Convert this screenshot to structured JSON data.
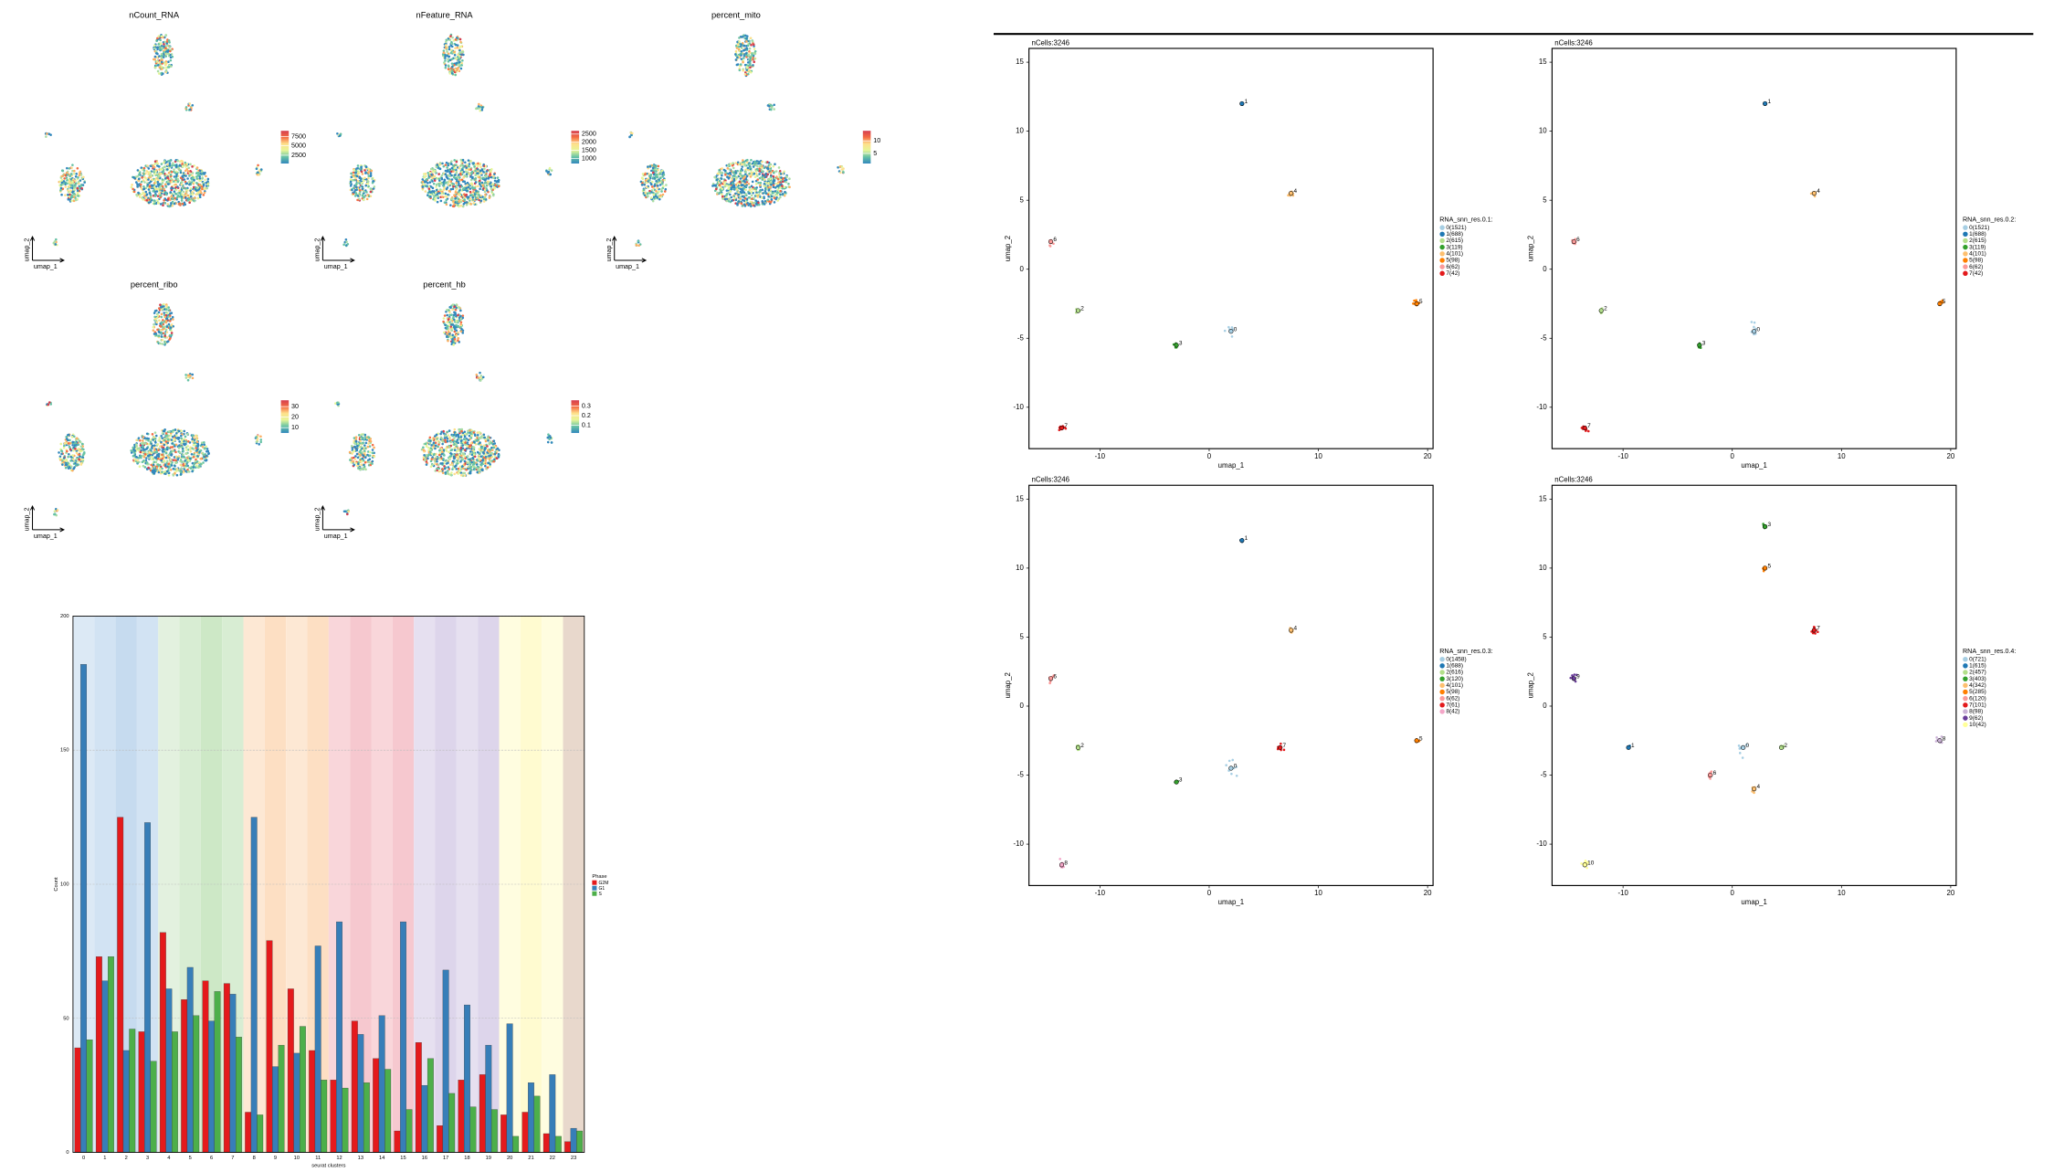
{
  "chart_data": [
    {
      "type": "feature",
      "title": "nCount_RNA",
      "xlabel": "umap_1",
      "ylabel": "umap_2",
      "colorbar_lim": [
        300,
        9000
      ],
      "colorbar_ticks": [
        7500,
        5000,
        2500
      ]
    },
    {
      "type": "feature",
      "title": "nFeature_RNA",
      "xlabel": "umap_1",
      "ylabel": "umap_2",
      "colorbar_lim": [
        700,
        2700
      ],
      "colorbar_ticks": [
        2500,
        2000,
        1500,
        1000
      ]
    },
    {
      "type": "feature",
      "title": "percent_mito",
      "xlabel": "umap_1",
      "ylabel": "umap_2",
      "colorbar_lim": [
        1,
        14
      ],
      "colorbar_ticks": [
        10,
        5
      ]
    },
    {
      "type": "feature",
      "title": "percent_ribo",
      "xlabel": "umap_1",
      "ylabel": "umap_2",
      "colorbar_lim": [
        5,
        36
      ],
      "colorbar_ticks": [
        30,
        20,
        10
      ]
    },
    {
      "type": "feature",
      "title": "percent_hb",
      "xlabel": "umap_1",
      "ylabel": "umap_2",
      "colorbar_lim": [
        0.02,
        0.36
      ],
      "colorbar_ticks": [
        0.3,
        0.2,
        0.1
      ]
    },
    {
      "type": "bar",
      "xlabel": "seurat clusters",
      "ylabel": "Count",
      "legend_title": "Phase",
      "categories": [
        "0",
        "1",
        "2",
        "3",
        "4",
        "5",
        "6",
        "7",
        "8",
        "9",
        "10",
        "11",
        "12",
        "13",
        "14",
        "15",
        "16",
        "17",
        "18",
        "19",
        "20",
        "21",
        "22",
        "23"
      ],
      "ylim": [
        0,
        200
      ],
      "yticks": [
        0,
        50,
        100,
        150,
        200
      ],
      "grid": true,
      "series": [
        {
          "name": "G2M",
          "color": "#E41A1C",
          "values": [
            39,
            73,
            125,
            45,
            82,
            57,
            64,
            63,
            15,
            79,
            61,
            38,
            27,
            49,
            35,
            8,
            41,
            10,
            27,
            29,
            14,
            15,
            7,
            4
          ]
        },
        {
          "name": "G1",
          "color": "#377EB8",
          "values": [
            182,
            64,
            38,
            123,
            61,
            69,
            49,
            59,
            125,
            32,
            37,
            77,
            86,
            44,
            51,
            86,
            25,
            68,
            55,
            40,
            48,
            26,
            29,
            9
          ]
        },
        {
          "name": "S",
          "color": "#4DAF4A",
          "values": [
            42,
            73,
            46,
            34,
            45,
            51,
            60,
            43,
            14,
            40,
            47,
            27,
            24,
            26,
            31,
            16,
            35,
            22,
            17,
            16,
            6,
            21,
            6,
            8
          ]
        }
      ]
    },
    {
      "type": "scatter",
      "title": "nCells:3246",
      "xlabel": "umap_1",
      "ylabel": "umap_2",
      "legend_title": "RNA_snn_res.0.1:",
      "xlim": [
        -16.5,
        20.5
      ],
      "ylim": [
        -13,
        16
      ],
      "xticks": [
        -10,
        0,
        10,
        20
      ],
      "yticks": [
        -10,
        -5,
        0,
        5,
        10,
        15
      ],
      "series": [
        {
          "name": "0(1521)",
          "label": "0",
          "color": "#A6CEE3",
          "x": 2,
          "y": -4.5
        },
        {
          "name": "1(688)",
          "label": "1",
          "color": "#1F78B4",
          "x": 3,
          "y": 12
        },
        {
          "name": "2(615)",
          "label": "2",
          "color": "#B2DF8A",
          "x": -12,
          "y": -3
        },
        {
          "name": "3(119)",
          "label": "3",
          "color": "#33A02C",
          "x": -3,
          "y": -5.5
        },
        {
          "name": "4(101)",
          "label": "4",
          "color": "#FDBF6F",
          "x": 7.5,
          "y": 5.5
        },
        {
          "name": "5(98)",
          "label": "5",
          "color": "#FF7F00",
          "x": 19,
          "y": -2.5
        },
        {
          "name": "6(62)",
          "label": "6",
          "color": "#FB9A99",
          "x": -14.5,
          "y": 2
        },
        {
          "name": "7(42)",
          "label": "7",
          "color": "#E31A1C",
          "x": -13.5,
          "y": -11.5
        }
      ]
    },
    {
      "type": "scatter",
      "title": "nCells:3246",
      "xlabel": "umap_1",
      "ylabel": "umap_2",
      "legend_title": "RNA_snn_res.0.2:",
      "xlim": [
        -16.5,
        20.5
      ],
      "ylim": [
        -13,
        16
      ],
      "xticks": [
        -10,
        0,
        10,
        20
      ],
      "yticks": [
        -10,
        -5,
        0,
        5,
        10,
        15
      ],
      "series": [
        {
          "name": "0(1521)",
          "label": "0",
          "color": "#A6CEE3",
          "x": 2,
          "y": -4.5
        },
        {
          "name": "1(688)",
          "label": "1",
          "color": "#1F78B4",
          "x": 3,
          "y": 12
        },
        {
          "name": "2(615)",
          "label": "2",
          "color": "#B2DF8A",
          "x": -12,
          "y": -3
        },
        {
          "name": "3(119)",
          "label": "3",
          "color": "#33A02C",
          "x": -3,
          "y": -5.5
        },
        {
          "name": "4(101)",
          "label": "4",
          "color": "#FDBF6F",
          "x": 7.5,
          "y": 5.5
        },
        {
          "name": "5(98)",
          "label": "5",
          "color": "#FF7F00",
          "x": 19,
          "y": -2.5
        },
        {
          "name": "6(62)",
          "label": "6",
          "color": "#FB9A99",
          "x": -14.5,
          "y": 2
        },
        {
          "name": "7(42)",
          "label": "7",
          "color": "#E31A1C",
          "x": -13.5,
          "y": -11.5
        }
      ]
    },
    {
      "type": "scatter",
      "title": "nCells:3246",
      "xlabel": "umap_1",
      "ylabel": "umap_2",
      "legend_title": "RNA_snn_res.0.3:",
      "xlim": [
        -16.5,
        20.5
      ],
      "ylim": [
        -13,
        16
      ],
      "xticks": [
        -10,
        0,
        10,
        20
      ],
      "yticks": [
        -10,
        -5,
        0,
        5,
        10,
        15
      ],
      "series": [
        {
          "name": "0(1458)",
          "label": "0",
          "color": "#A6CEE3",
          "x": 2,
          "y": -4.5
        },
        {
          "name": "1(688)",
          "label": "1",
          "color": "#1F78B4",
          "x": 3,
          "y": 12
        },
        {
          "name": "2(616)",
          "label": "2",
          "color": "#B2DF8A",
          "x": -12,
          "y": -3
        },
        {
          "name": "3(120)",
          "label": "3",
          "color": "#33A02C",
          "x": -3,
          "y": -5.5
        },
        {
          "name": "4(101)",
          "label": "4",
          "color": "#FDBF6F",
          "x": 7.5,
          "y": 5.5
        },
        {
          "name": "5(98)",
          "label": "5",
          "color": "#FF7F00",
          "x": 19,
          "y": -2.5
        },
        {
          "name": "6(62)",
          "label": "6",
          "color": "#FB9A99",
          "x": -14.5,
          "y": 2
        },
        {
          "name": "7(61)",
          "label": "7",
          "color": "#E31A1C",
          "x": 6.5,
          "y": -3
        },
        {
          "name": "8(42)",
          "label": "8",
          "color": "#F4A6C8",
          "x": -13.5,
          "y": -11.5
        }
      ]
    },
    {
      "type": "scatter",
      "title": "nCells:3246",
      "xlabel": "umap_1",
      "ylabel": "umap_2",
      "legend_title": "RNA_snn_res.0.4:",
      "xlim": [
        -16.5,
        20.5
      ],
      "ylim": [
        -13,
        16
      ],
      "xticks": [
        -10,
        0,
        10,
        20
      ],
      "yticks": [
        -10,
        -5,
        0,
        5,
        10,
        15
      ],
      "series": [
        {
          "name": "0(721)",
          "label": "0",
          "color": "#A6CEE3",
          "x": 1,
          "y": -3
        },
        {
          "name": "1(615)",
          "label": "1",
          "color": "#1F78B4",
          "x": -9.5,
          "y": -3
        },
        {
          "name": "2(457)",
          "label": "2",
          "color": "#B2DF8A",
          "x": 4.5,
          "y": -3
        },
        {
          "name": "3(403)",
          "label": "3",
          "color": "#33A02C",
          "x": 3,
          "y": 13
        },
        {
          "name": "4(342)",
          "label": "4",
          "color": "#FDBF6F",
          "x": 2,
          "y": -6
        },
        {
          "name": "5(285)",
          "label": "5",
          "color": "#FF7F00",
          "x": 3,
          "y": 10
        },
        {
          "name": "6(120)",
          "label": "6",
          "color": "#FB9A99",
          "x": -2,
          "y": -5
        },
        {
          "name": "7(101)",
          "label": "7",
          "color": "#E31A1C",
          "x": 7.5,
          "y": 5.5
        },
        {
          "name": "8(98)",
          "label": "8",
          "color": "#CAB2D6",
          "x": 19,
          "y": -2.5
        },
        {
          "name": "9(62)",
          "label": "9",
          "color": "#6A3D9A",
          "x": -14.5,
          "y": 2
        },
        {
          "name": "10(42)",
          "label": "10",
          "color": "#FFFF99",
          "x": -13.5,
          "y": -11.5
        }
      ]
    }
  ]
}
